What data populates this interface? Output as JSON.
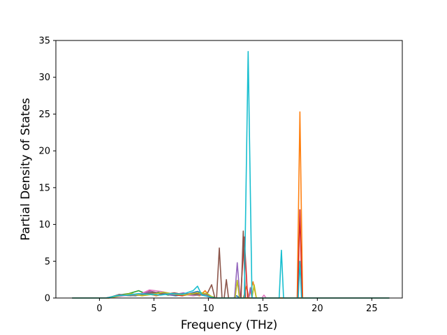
{
  "chart_data": {
    "type": "line",
    "title": "",
    "xlabel": "Frequency (THz)",
    "ylabel": "Partial Density of States",
    "xlim": [
      -4.0,
      27.8
    ],
    "ylim": [
      0,
      35
    ],
    "x_ticks": [
      0,
      5,
      10,
      15,
      20,
      25
    ],
    "y_ticks": [
      0,
      5,
      10,
      15,
      20,
      25,
      30,
      35
    ],
    "grid": false,
    "legend": "none",
    "series": [
      {
        "color": "#1f77b4",
        "points": [
          [
            -2.5,
            0
          ],
          [
            0.5,
            0
          ],
          [
            1.5,
            0.2
          ],
          [
            2.5,
            0.4
          ],
          [
            3.3,
            0.3
          ],
          [
            4.2,
            0.6
          ],
          [
            5.0,
            0.4
          ],
          [
            6.0,
            0.5
          ],
          [
            7.0,
            0.3
          ],
          [
            8.0,
            0.5
          ],
          [
            9.0,
            0.9
          ],
          [
            10.0,
            0.2
          ],
          [
            10.8,
            0
          ],
          [
            12.3,
            0
          ],
          [
            12.6,
            0.3
          ],
          [
            12.9,
            0
          ],
          [
            17.5,
            0
          ],
          [
            26.6,
            0
          ]
        ]
      },
      {
        "color": "#ff7f0e",
        "points": [
          [
            -2.5,
            0
          ],
          [
            0.6,
            0
          ],
          [
            1.5,
            0.3
          ],
          [
            2.4,
            0.5
          ],
          [
            3.4,
            0.4
          ],
          [
            4.3,
            0.7
          ],
          [
            5.2,
            0.3
          ],
          [
            6.1,
            0.6
          ],
          [
            7.3,
            0.4
          ],
          [
            8.3,
            0.6
          ],
          [
            9.2,
            0.3
          ],
          [
            9.7,
            1.0
          ],
          [
            10.1,
            0.2
          ],
          [
            10.6,
            0
          ],
          [
            13.2,
            0
          ],
          [
            13.5,
            1.6
          ],
          [
            13.7,
            0
          ],
          [
            14.1,
            2.2
          ],
          [
            14.4,
            0
          ],
          [
            18.15,
            0
          ],
          [
            18.4,
            25.3
          ],
          [
            18.65,
            0
          ],
          [
            26.6,
            0
          ]
        ]
      },
      {
        "color": "#2ca02c",
        "points": [
          [
            -2.5,
            0
          ],
          [
            0.7,
            0
          ],
          [
            1.7,
            0.4
          ],
          [
            2.7,
            0.6
          ],
          [
            3.6,
            1.0
          ],
          [
            4.4,
            0.5
          ],
          [
            5.4,
            0.8
          ],
          [
            6.3,
            0.4
          ],
          [
            7.4,
            0.6
          ],
          [
            8.4,
            0.5
          ],
          [
            9.4,
            0.7
          ],
          [
            10.1,
            0.3
          ],
          [
            10.7,
            0
          ],
          [
            26.6,
            0
          ]
        ]
      },
      {
        "color": "#d62728",
        "points": [
          [
            -2.5,
            0
          ],
          [
            0.6,
            0
          ],
          [
            1.6,
            0.3
          ],
          [
            2.6,
            0.5
          ],
          [
            3.5,
            0.4
          ],
          [
            4.5,
            1.0
          ],
          [
            5.6,
            0.6
          ],
          [
            6.6,
            0.5
          ],
          [
            7.6,
            0.3
          ],
          [
            8.6,
            0.6
          ],
          [
            9.6,
            0.4
          ],
          [
            10.3,
            0
          ],
          [
            12.95,
            0
          ],
          [
            13.3,
            8.3
          ],
          [
            13.6,
            0
          ],
          [
            18.2,
            0
          ],
          [
            18.4,
            12.0
          ],
          [
            18.6,
            0
          ],
          [
            26.6,
            0
          ]
        ]
      },
      {
        "color": "#9467bd",
        "points": [
          [
            -2.5,
            0
          ],
          [
            0.8,
            0
          ],
          [
            1.8,
            0.3
          ],
          [
            2.8,
            0.4
          ],
          [
            3.8,
            0.6
          ],
          [
            4.7,
            0.9
          ],
          [
            5.7,
            0.6
          ],
          [
            6.7,
            0.4
          ],
          [
            7.7,
            0.7
          ],
          [
            8.7,
            0.4
          ],
          [
            9.7,
            0.6
          ],
          [
            10.4,
            0
          ],
          [
            12.4,
            0
          ],
          [
            12.65,
            4.8
          ],
          [
            12.9,
            0
          ],
          [
            13.7,
            0
          ],
          [
            13.85,
            1.4
          ],
          [
            14.0,
            0
          ],
          [
            26.6,
            0
          ]
        ]
      },
      {
        "color": "#8c564b",
        "points": [
          [
            -2.5,
            0
          ],
          [
            0.9,
            0
          ],
          [
            1.9,
            0.4
          ],
          [
            2.9,
            0.3
          ],
          [
            3.9,
            0.5
          ],
          [
            4.9,
            0.8
          ],
          [
            5.9,
            0.5
          ],
          [
            6.9,
            0.7
          ],
          [
            7.9,
            0.4
          ],
          [
            8.9,
            0.5
          ],
          [
            9.8,
            0.3
          ],
          [
            10.3,
            1.8
          ],
          [
            10.6,
            0
          ],
          [
            10.75,
            0
          ],
          [
            11.0,
            6.8
          ],
          [
            11.25,
            0
          ],
          [
            11.45,
            0
          ],
          [
            11.65,
            2.5
          ],
          [
            11.85,
            0
          ],
          [
            13.0,
            0
          ],
          [
            13.2,
            9.1
          ],
          [
            13.4,
            0
          ],
          [
            26.6,
            0
          ]
        ]
      },
      {
        "color": "#e377c2",
        "points": [
          [
            -2.5,
            0
          ],
          [
            0.7,
            0
          ],
          [
            1.7,
            0.2
          ],
          [
            2.7,
            0.4
          ],
          [
            3.7,
            0.5
          ],
          [
            4.6,
            1.1
          ],
          [
            5.6,
            0.9
          ],
          [
            6.6,
            0.6
          ],
          [
            7.6,
            0.5
          ],
          [
            8.6,
            0.3
          ],
          [
            9.6,
            0.5
          ],
          [
            10.2,
            0
          ],
          [
            14.9,
            0
          ],
          [
            15.1,
            0.4
          ],
          [
            15.3,
            0
          ],
          [
            26.6,
            0
          ]
        ]
      },
      {
        "color": "#7f7f7f",
        "points": [
          [
            -2.5,
            0
          ],
          [
            0.8,
            0
          ],
          [
            1.8,
            0.5
          ],
          [
            2.8,
            0.3
          ],
          [
            3.8,
            0.4
          ],
          [
            4.8,
            0.6
          ],
          [
            5.8,
            0.7
          ],
          [
            6.8,
            0.5
          ],
          [
            7.8,
            0.6
          ],
          [
            8.8,
            0.4
          ],
          [
            9.8,
            0.5
          ],
          [
            10.4,
            0
          ],
          [
            26.6,
            0
          ]
        ]
      },
      {
        "color": "#bcbd22",
        "points": [
          [
            -2.5,
            0
          ],
          [
            0.9,
            0
          ],
          [
            1.9,
            0.3
          ],
          [
            2.9,
            0.6
          ],
          [
            3.9,
            0.3
          ],
          [
            4.9,
            0.5
          ],
          [
            5.9,
            0.8
          ],
          [
            6.9,
            0.5
          ],
          [
            7.9,
            0.4
          ],
          [
            8.9,
            0.7
          ],
          [
            9.9,
            0.6
          ],
          [
            10.5,
            0
          ],
          [
            12.45,
            0
          ],
          [
            12.65,
            2.4
          ],
          [
            12.85,
            0
          ],
          [
            14.0,
            0
          ],
          [
            14.2,
            1.8
          ],
          [
            14.4,
            0
          ],
          [
            26.6,
            0
          ]
        ]
      },
      {
        "color": "#17becf",
        "points": [
          [
            -2.5,
            0
          ],
          [
            0.6,
            0
          ],
          [
            1.6,
            0.3
          ],
          [
            2.6,
            0.4
          ],
          [
            3.6,
            0.6
          ],
          [
            4.6,
            0.5
          ],
          [
            5.6,
            0.4
          ],
          [
            6.6,
            0.6
          ],
          [
            7.6,
            0.5
          ],
          [
            8.6,
            1.0
          ],
          [
            9.0,
            1.6
          ],
          [
            9.4,
            0.4
          ],
          [
            10.0,
            0.2
          ],
          [
            10.5,
            0
          ],
          [
            13.3,
            0
          ],
          [
            13.65,
            33.5
          ],
          [
            14.0,
            0
          ],
          [
            16.5,
            0
          ],
          [
            16.7,
            6.5
          ],
          [
            16.9,
            0
          ],
          [
            18.25,
            0
          ],
          [
            18.4,
            5.0
          ],
          [
            18.55,
            0
          ],
          [
            26.6,
            0
          ]
        ]
      }
    ]
  }
}
